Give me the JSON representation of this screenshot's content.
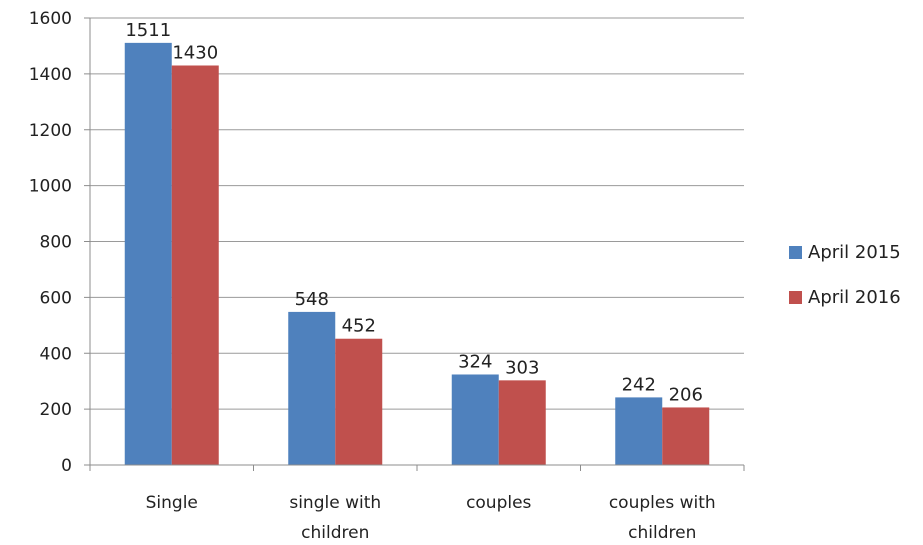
{
  "chart_data": {
    "type": "bar",
    "categories": [
      [
        "Single"
      ],
      [
        "single with",
        "children"
      ],
      [
        "couples"
      ],
      [
        "couples with",
        "children"
      ]
    ],
    "series": [
      {
        "name": "April 2015",
        "color": "#4f81bd",
        "values": [
          1511,
          548,
          324,
          242
        ]
      },
      {
        "name": "April 2016",
        "color": "#c0504d",
        "values": [
          1430,
          452,
          303,
          206
        ]
      }
    ],
    "yticks": [
      "0",
      "200",
      "400",
      "600",
      "800",
      "1000",
      "1200",
      "1400",
      "1600"
    ],
    "ylim": [
      0,
      1600
    ],
    "grid": true,
    "legend": "right"
  }
}
